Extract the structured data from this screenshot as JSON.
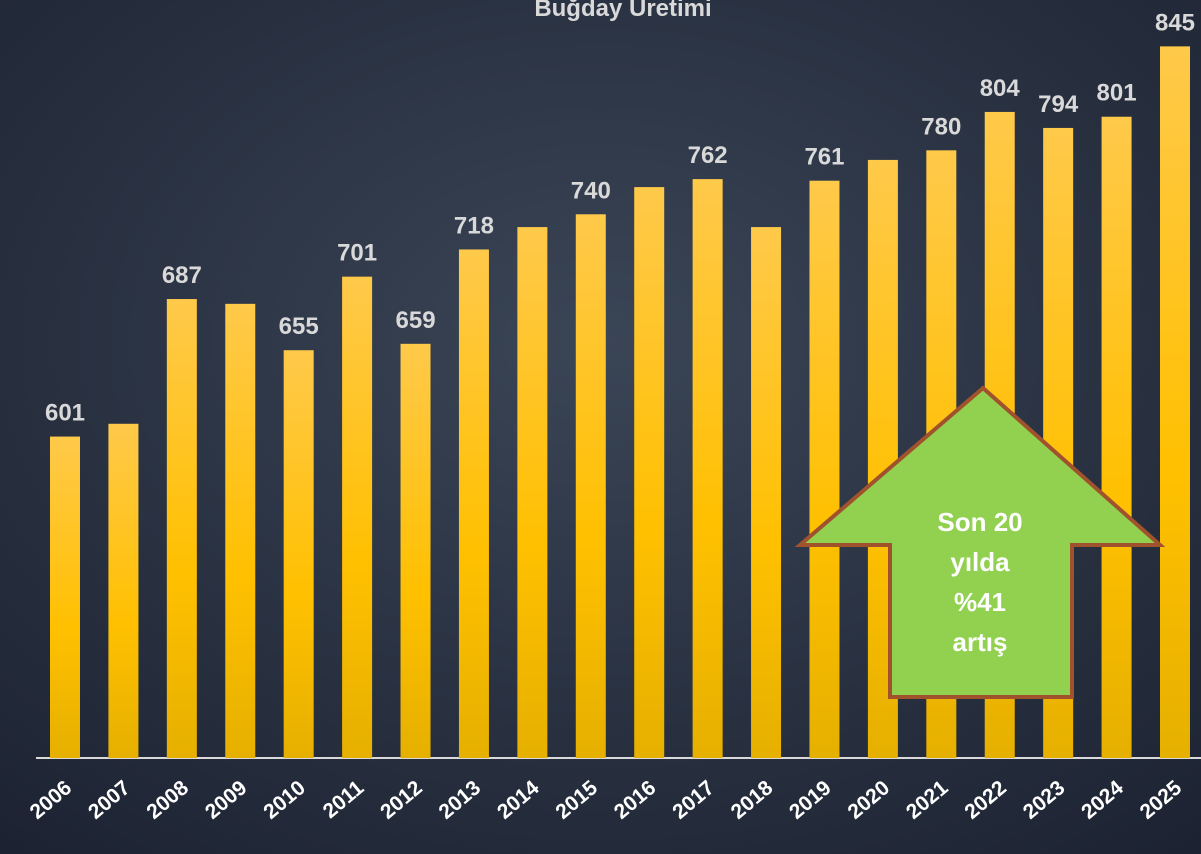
{
  "chart_data": {
    "type": "bar",
    "title": "Buğday Üretimi",
    "categories": [
      "2006",
      "2007",
      "2008",
      "2009",
      "2010",
      "2011",
      "2012",
      "2013",
      "2014",
      "2015",
      "2016",
      "2017",
      "2018",
      "2019",
      "2020",
      "2021",
      "2022",
      "2023",
      "2024",
      "2025"
    ],
    "values": [
      601,
      609,
      687,
      684,
      655,
      701,
      659,
      718,
      732,
      740,
      757,
      762,
      732,
      761,
      774,
      780,
      804,
      794,
      801,
      845
    ],
    "value_labels": [
      "601",
      null,
      "687",
      null,
      "655",
      "701",
      "659",
      "718",
      null,
      "740",
      null,
      "762",
      null,
      "761",
      null,
      "780",
      "804",
      "794",
      "801",
      "845"
    ],
    "color": "#ffc000",
    "ylim": [
      400,
      874
    ],
    "annotation": [
      "Son 20",
      "yılda",
      "%41",
      "artış"
    ]
  }
}
